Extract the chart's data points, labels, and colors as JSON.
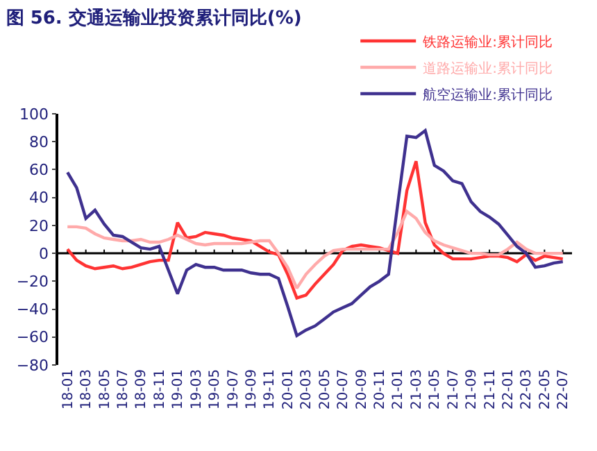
{
  "chart_data": {
    "type": "line",
    "title": "图 56. 交通运输业投资累计同比(%)",
    "categories": [
      "18-01",
      null,
      "18-03",
      null,
      "18-05",
      null,
      "18-07",
      null,
      "18-09",
      null,
      "18-11",
      null,
      "19-01",
      null,
      "19-03",
      null,
      "19-05",
      null,
      "19-07",
      null,
      "19-09",
      null,
      "19-11",
      null,
      "20-01",
      null,
      "20-03",
      null,
      "20-05",
      null,
      "20-07",
      null,
      "20-09",
      null,
      "20-11",
      null,
      "21-01",
      null,
      "21-03",
      null,
      "21-05",
      null,
      "21-07",
      null,
      "21-09",
      null,
      "21-11",
      null,
      "22-01",
      null,
      "22-03",
      null,
      "22-05",
      null,
      "22-07"
    ],
    "series": [
      {
        "name": "铁路运输业:累计同比",
        "color": "#ff3333",
        "values": [
          3,
          -5,
          -9,
          -11,
          -10,
          -9,
          -11,
          -10,
          -8,
          -6,
          -5,
          -5,
          22,
          11,
          12,
          15,
          14,
          13,
          11,
          10,
          9,
          5,
          1,
          -1,
          -15,
          -32,
          -30,
          -22,
          -15,
          -8,
          2,
          5,
          6,
          5,
          4,
          2,
          0,
          45,
          66,
          22,
          6,
          0,
          -4,
          -4,
          -4,
          -3,
          -2,
          -2,
          -3,
          -6,
          -1,
          -5,
          -2,
          -3,
          -4
        ]
      },
      {
        "name": "道路运输业:累计同比",
        "color": "#ffaaaa",
        "values": [
          19,
          19,
          18,
          14,
          11,
          10,
          9,
          9,
          10,
          8,
          8,
          10,
          13,
          10,
          7,
          6,
          7,
          7,
          7,
          7,
          8,
          9,
          9,
          0,
          -10,
          -25,
          -15,
          -8,
          -2,
          2,
          3,
          3,
          3,
          3,
          3,
          3,
          15,
          30,
          25,
          15,
          9,
          6,
          4,
          2,
          0,
          0,
          -1,
          -1,
          3,
          8,
          3,
          0,
          0,
          0,
          0
        ]
      },
      {
        "name": "航空运输业:累计同比",
        "color": "#3f318f",
        "values": [
          58,
          47,
          25,
          31,
          21,
          13,
          12,
          8,
          4,
          3,
          5,
          -12,
          -29,
          -12,
          -8,
          -10,
          -10,
          -12,
          -12,
          -12,
          -14,
          -15,
          -15,
          -18,
          -38,
          -59,
          -55,
          -52,
          -47,
          -42,
          -39,
          -36,
          -30,
          -24,
          -20,
          -15,
          35,
          84,
          83,
          88,
          63,
          59,
          52,
          50,
          37,
          30,
          26,
          21,
          13,
          5,
          0,
          -10,
          -9,
          -7,
          -6
        ]
      }
    ],
    "ylim": [
      -80,
      100
    ],
    "yticks": [
      -80,
      -60,
      -40,
      -20,
      0,
      20,
      40,
      60,
      80,
      100
    ],
    "legend": "top right",
    "marker": "none",
    "line_style": "solid"
  }
}
